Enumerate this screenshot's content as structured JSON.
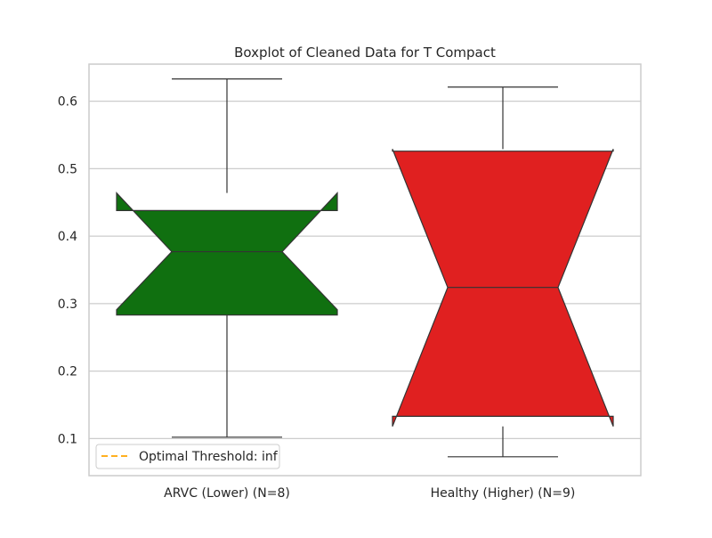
{
  "chart_data": {
    "type": "boxplot",
    "title": "Boxplot of Cleaned Data for T Compact",
    "xlabel": "",
    "ylabel": "",
    "ylim": [
      0.045,
      0.655
    ],
    "yticks": [
      0.1,
      0.2,
      0.3,
      0.4,
      0.5,
      0.6
    ],
    "ytick_labels": [
      "0.1",
      "0.2",
      "0.3",
      "0.4",
      "0.5",
      "0.6"
    ],
    "grid": "horizontal",
    "notched": true,
    "categories": [
      "ARVC (Lower) (N=8)",
      "Healthy (Higher) (N=9)"
    ],
    "boxes": [
      {
        "name": "ARVC (Lower) (N=8)",
        "color": "#107010",
        "whisker_low": 0.102,
        "q1": 0.283,
        "median": 0.377,
        "q3": 0.438,
        "whisker_high": 0.633,
        "notch_low": 0.291,
        "notch_high": 0.464
      },
      {
        "name": "Healthy (Higher) (N=9)",
        "color": "#e02020",
        "whisker_low": 0.073,
        "q1": 0.133,
        "median": 0.324,
        "q3": 0.526,
        "whisker_high": 0.621,
        "notch_low": 0.118,
        "notch_high": 0.529
      }
    ],
    "legend": {
      "placement": "lower-left",
      "entries": [
        {
          "label": "Optimal Threshold: inf",
          "color": "#ffa500",
          "style": "dashed"
        }
      ]
    }
  }
}
